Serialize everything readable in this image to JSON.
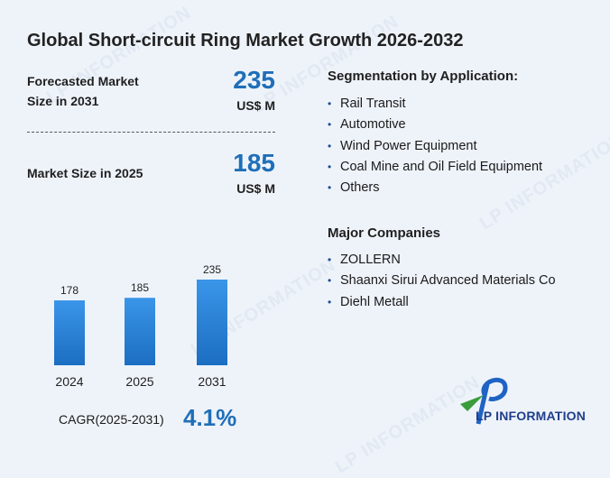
{
  "title": "Global Short-circuit Ring Market Growth 2026-2032",
  "forecast": {
    "label_line1": "Forecasted Market",
    "label_line2": "Size in 2031",
    "value": "235",
    "unit": "US$ M"
  },
  "current": {
    "label": "Market Size in 2025",
    "value": "185",
    "unit": "US$ M"
  },
  "segmentation": {
    "title": "Segmentation by Application:",
    "items": [
      "Rail Transit",
      "Automotive",
      "Wind Power Equipment",
      "Coal Mine and Oil Field Equipment",
      "Others"
    ]
  },
  "companies": {
    "title": "Major Companies",
    "items": [
      "ZOLLERN",
      "Shaanxi Sirui Advanced Materials Co",
      "Diehl Metall"
    ]
  },
  "cagr": {
    "label": "CAGR(2025-2031)",
    "value": "4.1%"
  },
  "watermark": "LP INFORMATION",
  "logo": {
    "text": "LP INFORMATION",
    "colors": {
      "blue": "#1f63c4",
      "green": "#3a9d3a"
    }
  },
  "colors": {
    "accent": "#1f6fb8",
    "bar_top": "#3a95e8",
    "bar_bottom": "#1c6ec2"
  },
  "chart_data": {
    "type": "bar",
    "categories": [
      "2024",
      "2025",
      "2031"
    ],
    "values": [
      178,
      185,
      235
    ],
    "title": "",
    "xlabel": "",
    "ylabel": "",
    "grid": false
  }
}
